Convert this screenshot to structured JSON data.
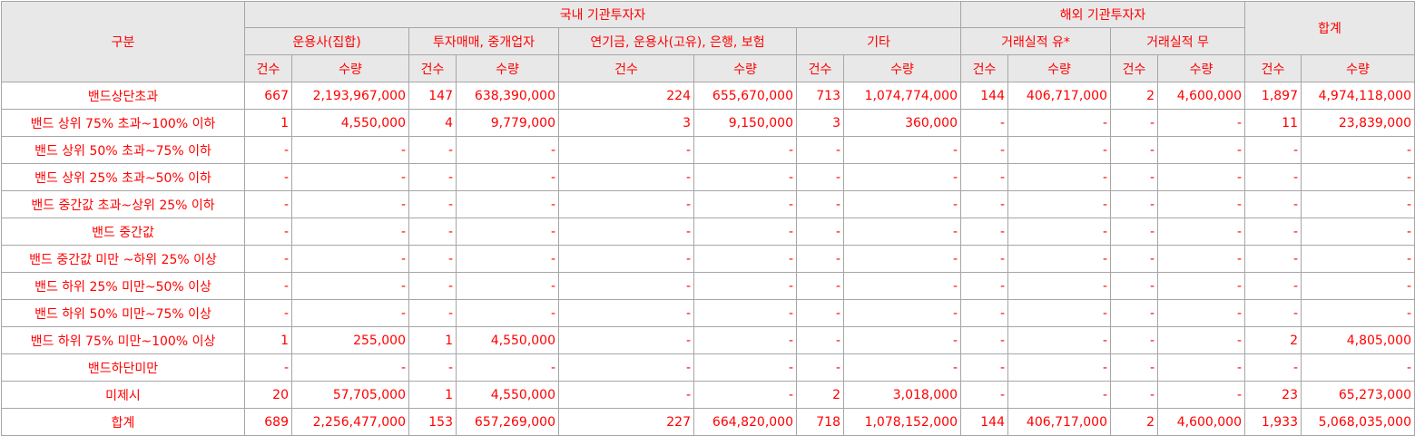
{
  "header": {
    "category": "구분",
    "domestic": "국내 기관투자자",
    "foreign": "해외 기관투자자",
    "total": "합계",
    "groups": [
      "운용사(집합)",
      "투자매매, 중개업자",
      "연기금, 운용사(고유), 은행, 보험",
      "기타",
      "거래실적 유*",
      "거래실적 무"
    ],
    "count": "건수",
    "qty": "수량"
  },
  "rows": [
    {
      "label": "밴드상단초과",
      "cells": [
        "667",
        "2,193,967,000",
        "147",
        "638,390,000",
        "224",
        "655,670,000",
        "713",
        "1,074,774,000",
        "144",
        "406,717,000",
        "2",
        "4,600,000",
        "1,897",
        "4,974,118,000"
      ]
    },
    {
      "label": "밴드 상위 75% 초과~100% 이하",
      "cells": [
        "1",
        "4,550,000",
        "4",
        "9,779,000",
        "3",
        "9,150,000",
        "3",
        "360,000",
        "-",
        "-",
        "-",
        "-",
        "11",
        "23,839,000"
      ]
    },
    {
      "label": "밴드 상위 50% 초과~75% 이하",
      "cells": [
        "-",
        "-",
        "-",
        "-",
        "-",
        "-",
        "-",
        "-",
        "-",
        "-",
        "-",
        "-",
        "-",
        "-"
      ]
    },
    {
      "label": "밴드 상위 25% 초과~50% 이하",
      "cells": [
        "-",
        "-",
        "-",
        "-",
        "-",
        "-",
        "-",
        "-",
        "-",
        "-",
        "-",
        "-",
        "-",
        "-"
      ]
    },
    {
      "label": "밴드 중간값 초과~상위 25% 이하",
      "cells": [
        "-",
        "-",
        "-",
        "-",
        "-",
        "-",
        "-",
        "-",
        "-",
        "-",
        "-",
        "-",
        "-",
        "-"
      ]
    },
    {
      "label": "밴드 중간값",
      "cells": [
        "-",
        "-",
        "-",
        "-",
        "-",
        "-",
        "-",
        "-",
        "-",
        "-",
        "-",
        "-",
        "-",
        "-"
      ]
    },
    {
      "label": "밴드 중간값 미만 ~하위 25% 이상",
      "cells": [
        "-",
        "-",
        "-",
        "-",
        "-",
        "-",
        "-",
        "-",
        "-",
        "-",
        "-",
        "-",
        "-",
        "-"
      ]
    },
    {
      "label": "밴드 하위 25% 미만~50% 이상",
      "cells": [
        "-",
        "-",
        "-",
        "-",
        "-",
        "-",
        "-",
        "-",
        "-",
        "-",
        "-",
        "-",
        "-",
        "-"
      ]
    },
    {
      "label": "밴드 하위 50% 미만~75% 이상",
      "cells": [
        "-",
        "-",
        "-",
        "-",
        "-",
        "-",
        "-",
        "-",
        "-",
        "-",
        "-",
        "-",
        "-",
        "-"
      ]
    },
    {
      "label": "밴드 하위 75% 미만~100% 이상",
      "cells": [
        "1",
        "255,000",
        "1",
        "4,550,000",
        "-",
        "-",
        "-",
        "-",
        "-",
        "-",
        "-",
        "-",
        "2",
        "4,805,000"
      ]
    },
    {
      "label": "밴드하단미만",
      "cells": [
        "-",
        "-",
        "-",
        "-",
        "-",
        "-",
        "-",
        "-",
        "-",
        "-",
        "-",
        "-",
        "-",
        "-"
      ]
    },
    {
      "label": "미제시",
      "cells": [
        "20",
        "57,705,000",
        "1",
        "4,550,000",
        "-",
        "-",
        "2",
        "3,018,000",
        "-",
        "-",
        "-",
        "-",
        "23",
        "65,273,000"
      ]
    },
    {
      "label": "합계",
      "cells": [
        "689",
        "2,256,477,000",
        "153",
        "657,269,000",
        "227",
        "664,820,000",
        "718",
        "1,078,152,000",
        "144",
        "406,717,000",
        "2",
        "4,600,000",
        "1,933",
        "5,068,035,000"
      ]
    }
  ]
}
